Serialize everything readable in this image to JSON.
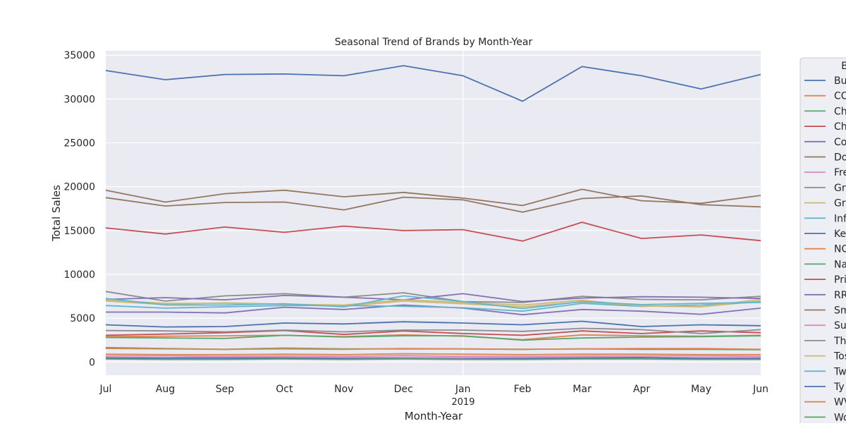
{
  "chart_data": {
    "type": "line",
    "title": "Seasonal Trend of Brands by Month-Year",
    "xlabel": "Month-Year",
    "ylabel": "Total Sales",
    "categories": [
      "Jul",
      "Aug",
      "Sep",
      "Oct",
      "Nov",
      "Dec",
      "Jan",
      "Feb",
      "Mar",
      "Apr",
      "May",
      "Jun"
    ],
    "x_year_label": "2019",
    "ylim": [
      -1500,
      35500
    ],
    "yticks": [
      0,
      5000,
      10000,
      15000,
      20000,
      25000,
      30000,
      35000
    ],
    "grid": true,
    "legend": {
      "title": "B",
      "placement": "right-outside"
    },
    "series": [
      {
        "name": "Bu",
        "color": "#4c72b0",
        "values": [
          33250,
          32200,
          32800,
          32850,
          32650,
          33800,
          32650,
          29750,
          33700,
          32650,
          31150,
          32800
        ]
      },
      {
        "name": "CC",
        "color": "#dd8452",
        "values": [
          900,
          850,
          850,
          900,
          850,
          950,
          900,
          850,
          900,
          900,
          850,
          850
        ]
      },
      {
        "name": "Ch",
        "color": "#55a868",
        "values": [
          1650,
          1550,
          1450,
          1600,
          1500,
          1500,
          1500,
          1450,
          1500,
          1450,
          1450,
          1400
        ]
      },
      {
        "name": "Ch",
        "color": "#c44e52",
        "values": [
          15300,
          14600,
          15400,
          14800,
          15500,
          15000,
          15100,
          13800,
          15950,
          14100,
          14500,
          13850
        ]
      },
      {
        "name": "Co",
        "color": "#8172b3",
        "values": [
          5700,
          5700,
          5600,
          6250,
          6000,
          6500,
          6150,
          5400,
          6000,
          5800,
          5450,
          6150
        ]
      },
      {
        "name": "Do",
        "color": "#937860",
        "values": [
          18750,
          17800,
          18200,
          18250,
          17350,
          18800,
          18500,
          17100,
          18650,
          18950,
          17950,
          17700
        ]
      },
      {
        "name": "Fre",
        "color": "#da8bc3",
        "values": [
          700,
          700,
          650,
          700,
          650,
          750,
          650,
          650,
          700,
          700,
          700,
          650
        ]
      },
      {
        "name": "Gr",
        "color": "#8c8c8c",
        "values": [
          8050,
          6950,
          7550,
          7800,
          7400,
          7900,
          6900,
          6800,
          7500,
          7150,
          7100,
          7500
        ]
      },
      {
        "name": "Gr",
        "color": "#ccb974",
        "values": [
          6950,
          6550,
          6750,
          6600,
          6350,
          6950,
          6650,
          6300,
          6850,
          6450,
          6300,
          6950
        ]
      },
      {
        "name": "Inf",
        "color": "#64b5cd",
        "values": [
          6450,
          6150,
          6300,
          6450,
          6450,
          6350,
          6200,
          5800,
          6700,
          6350,
          6500,
          6850
        ]
      },
      {
        "name": "Ke",
        "color": "#4c72b0",
        "values": [
          4250,
          4000,
          4050,
          4450,
          4350,
          4600,
          4450,
          4250,
          4650,
          4050,
          4250,
          4150
        ]
      },
      {
        "name": "NC",
        "color": "#dd8452",
        "values": [
          2900,
          2950,
          3000,
          3050,
          2900,
          3100,
          2950,
          2550,
          3100,
          3000,
          2950,
          3050
        ]
      },
      {
        "name": "Na",
        "color": "#55a868",
        "values": [
          2800,
          2750,
          2700,
          3050,
          2850,
          3000,
          3000,
          2500,
          2750,
          2850,
          2900,
          3000
        ]
      },
      {
        "name": "Pri",
        "color": "#c44e52",
        "values": [
          3050,
          3200,
          3350,
          3600,
          3150,
          3550,
          3250,
          3050,
          3550,
          3250,
          3550,
          3350
        ]
      },
      {
        "name": "RR",
        "color": "#8172b3",
        "values": [
          7150,
          7350,
          7100,
          7600,
          7400,
          7100,
          7800,
          6900,
          7300,
          7450,
          7400,
          7250
        ]
      },
      {
        "name": "Sm",
        "color": "#937860",
        "values": [
          19600,
          18250,
          19200,
          19600,
          18850,
          19350,
          18700,
          17850,
          19700,
          18400,
          18100,
          19000
        ]
      },
      {
        "name": "Su",
        "color": "#da8bc3",
        "values": [
          550,
          500,
          550,
          550,
          500,
          550,
          500,
          500,
          550,
          550,
          500,
          500
        ]
      },
      {
        "name": "Th",
        "color": "#8c8c8c",
        "values": [
          3600,
          3550,
          3450,
          3650,
          3450,
          3650,
          3650,
          3500,
          3850,
          3700,
          3250,
          3700
        ]
      },
      {
        "name": "Tos",
        "color": "#ccb974",
        "values": [
          7100,
          6700,
          6700,
          6600,
          6500,
          7100,
          6800,
          6500,
          7050,
          6400,
          6300,
          7150
        ]
      },
      {
        "name": "Tw",
        "color": "#64b5cd",
        "values": [
          7250,
          6500,
          6500,
          6650,
          6300,
          7550,
          6900,
          6100,
          6900,
          6550,
          6700,
          6800
        ]
      },
      {
        "name": "Ty",
        "color": "#4c72b0",
        "values": [
          450,
          450,
          450,
          450,
          400,
          400,
          350,
          400,
          450,
          500,
          400,
          400
        ]
      },
      {
        "name": "WV",
        "color": "#dd8452",
        "values": [
          1550,
          1500,
          1450,
          1500,
          1450,
          1550,
          1500,
          1450,
          1500,
          1550,
          1550,
          1450
        ]
      },
      {
        "name": "Wo",
        "color": "#55a868",
        "values": [
          350,
          300,
          300,
          350,
          300,
          350,
          300,
          300,
          350,
          350,
          300,
          300
        ]
      }
    ]
  }
}
